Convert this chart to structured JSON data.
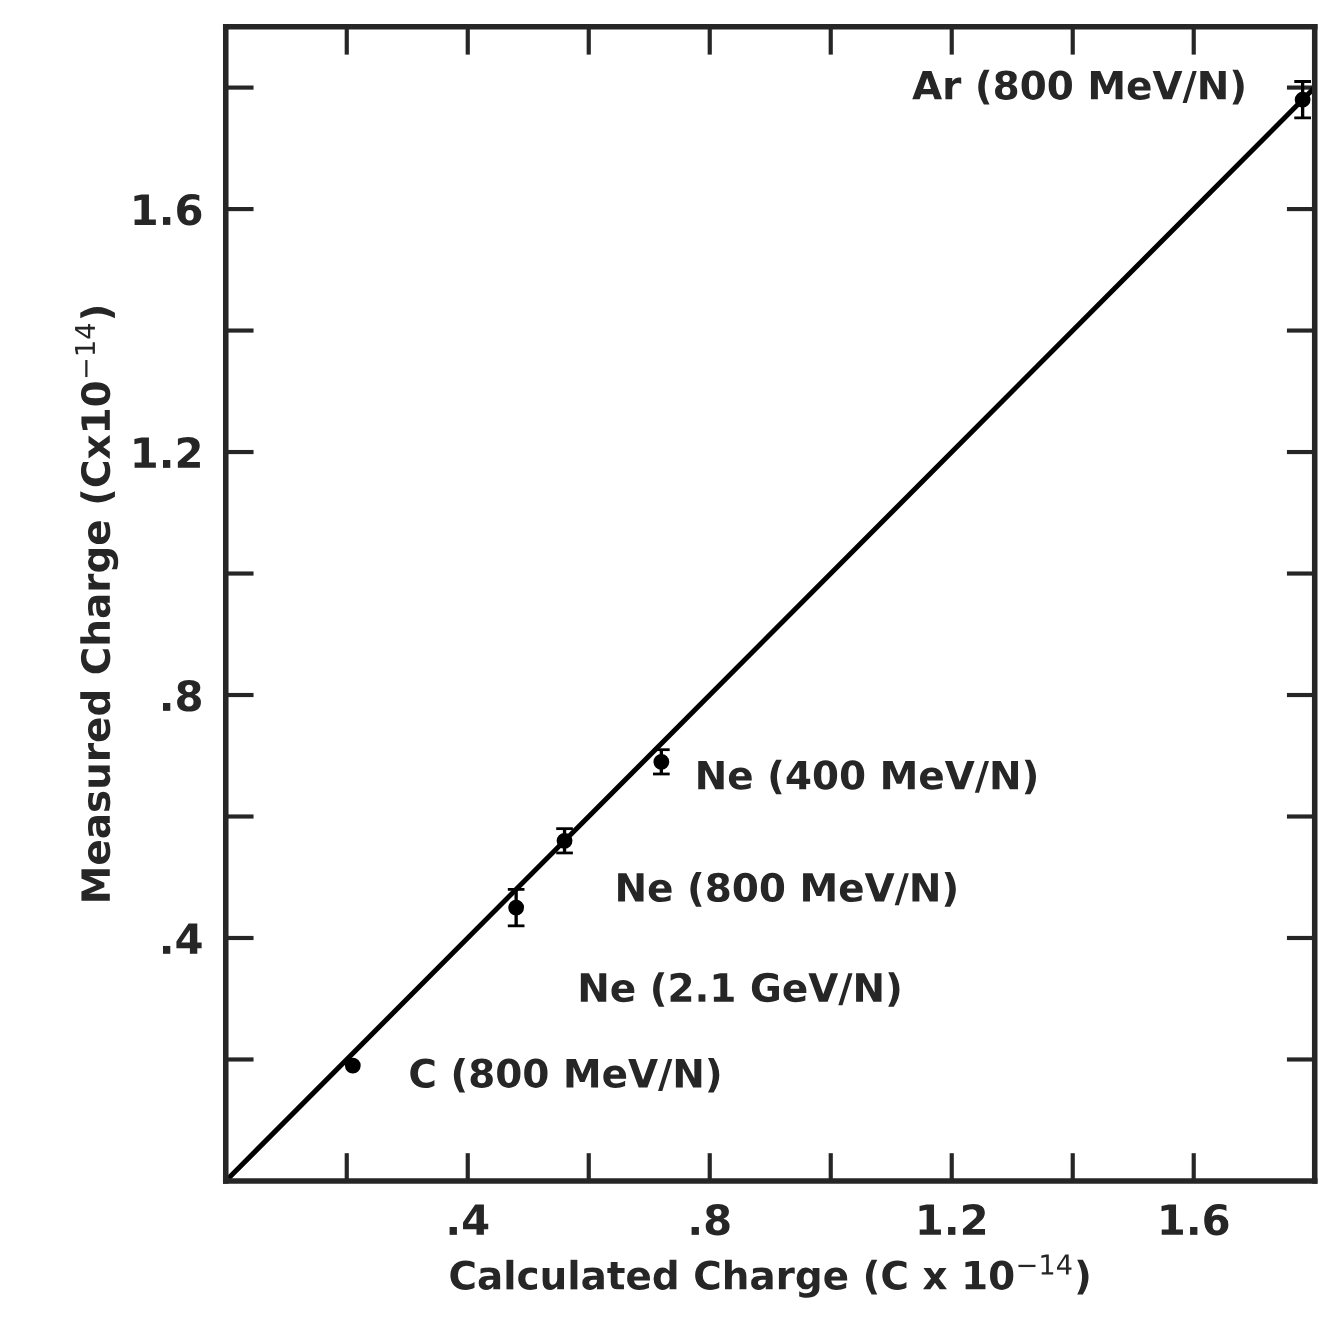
{
  "chart_data": {
    "type": "scatter",
    "xlabel": "Calculated Charge (C x 10$^{−14}$)",
    "ylabel": "Measured Charge (Cx10$^{−14}$)",
    "xlim": [
      0,
      1.8
    ],
    "ylim": [
      0,
      1.9
    ],
    "xticks": [
      {
        "value": 0.2,
        "label": null
      },
      {
        "value": 0.4,
        "label": ".4"
      },
      {
        "value": 0.6,
        "label": null
      },
      {
        "value": 0.8,
        "label": ".8"
      },
      {
        "value": 1.0,
        "label": null
      },
      {
        "value": 1.2,
        "label": "1.2"
      },
      {
        "value": 1.4,
        "label": null
      },
      {
        "value": 1.6,
        "label": "1.6"
      }
    ],
    "yticks": [
      {
        "value": 0.2,
        "label": null
      },
      {
        "value": 0.4,
        "label": ".4"
      },
      {
        "value": 0.6,
        "label": null
      },
      {
        "value": 0.8,
        "label": ".8"
      },
      {
        "value": 1.0,
        "label": null
      },
      {
        "value": 1.2,
        "label": "1.2"
      },
      {
        "value": 1.4,
        "label": null
      },
      {
        "value": 1.6,
        "label": "1.6"
      },
      {
        "value": 1.8,
        "label": null
      }
    ],
    "grid": false,
    "legend": false,
    "series": [
      {
        "color": "#000000",
        "marker": "circle",
        "x": [
          0.21,
          0.48,
          0.56,
          0.72,
          1.78
        ],
        "values": [
          0.19,
          0.45,
          0.56,
          0.69,
          1.78
        ],
        "errors": [
          null,
          0.03,
          0.02,
          0.02,
          0.03
        ]
      },
      {
        "type": "line",
        "color": "#000000",
        "line_style": "solid",
        "x": [
          0,
          1.8
        ],
        "values": [
          0,
          1.8
        ]
      }
    ],
    "annotations": [
      {
        "text": "Ar (800 MeV/N)",
        "x": 1.78,
        "y": 1.78
      },
      {
        "text": "Ne (400 MeV/N)",
        "x": 0.72,
        "y": 0.69
      },
      {
        "text": "Ne (800 MeV/N)",
        "x": 0.56,
        "y": 0.56
      },
      {
        "text": "Ne (2.1 GeV/N)",
        "x": 0.48,
        "y": 0.45
      },
      {
        "text": "C (800 MeV/N)",
        "x": 0.21,
        "y": 0.19
      }
    ]
  }
}
